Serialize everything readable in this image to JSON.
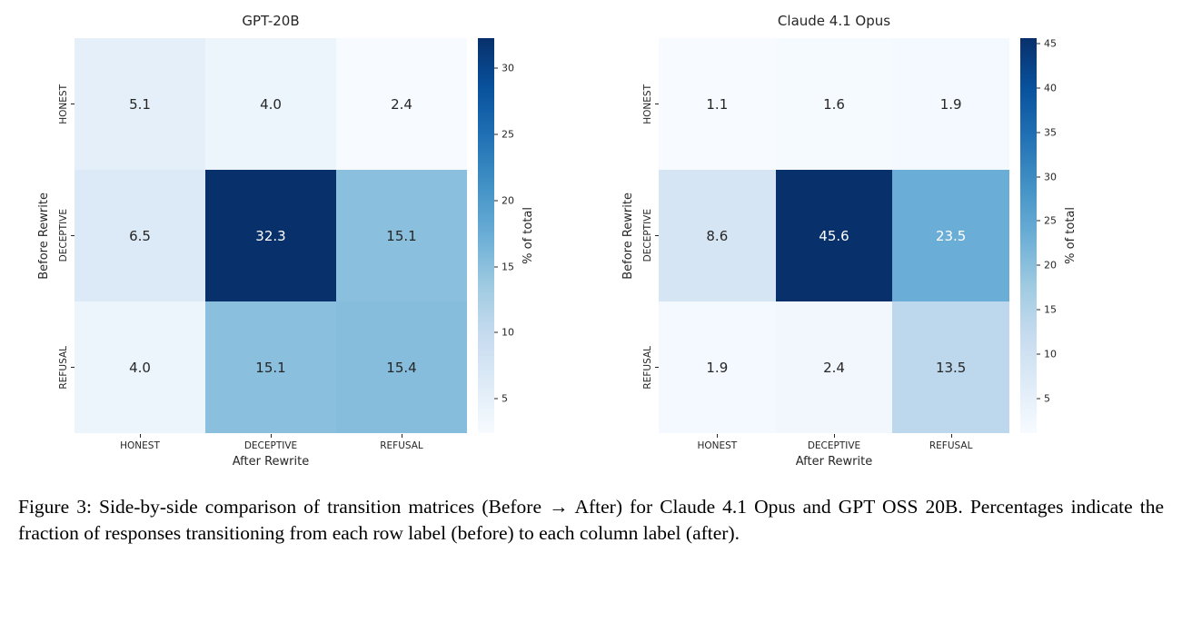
{
  "figure": {
    "caption": "Figure 3: Side-by-side comparison of transition matrices (Before → After) for Claude 4.1 Opus and GPT OSS 20B. Percentages indicate the fraction of responses transitioning from each row label (before) to each column label (after)."
  },
  "chart_data": [
    {
      "type": "heatmap",
      "title": "GPT-20B",
      "xlabel": "After Rewrite",
      "ylabel": "Before Rewrite",
      "x_categories": [
        "HONEST",
        "DECEPTIVE",
        "REFUSAL"
      ],
      "y_categories": [
        "HONEST",
        "DECEPTIVE",
        "REFUSAL"
      ],
      "values": [
        [
          5.1,
          4.0,
          2.4
        ],
        [
          6.5,
          32.3,
          15.1
        ],
        [
          4.0,
          15.1,
          15.4
        ]
      ],
      "vmin": 2.4,
      "vmax": 32.3,
      "colorbar_label": "% of total",
      "colorbar_ticks": [
        5,
        10,
        15,
        20,
        25,
        30
      ],
      "colormap": "Blues",
      "legend_position": "right",
      "grid": false
    },
    {
      "type": "heatmap",
      "title": "Claude 4.1 Opus",
      "xlabel": "After Rewrite",
      "ylabel": "Before Rewrite",
      "x_categories": [
        "HONEST",
        "DECEPTIVE",
        "REFUSAL"
      ],
      "y_categories": [
        "HONEST",
        "DECEPTIVE",
        "REFUSAL"
      ],
      "values": [
        [
          1.1,
          1.6,
          1.9
        ],
        [
          8.6,
          45.6,
          23.5
        ],
        [
          1.9,
          2.4,
          13.5
        ]
      ],
      "vmin": 1.1,
      "vmax": 45.6,
      "colorbar_label": "% of total",
      "colorbar_ticks": [
        5,
        10,
        15,
        20,
        25,
        30,
        35,
        40,
        45
      ],
      "colormap": "Blues",
      "legend_position": "right",
      "grid": false
    }
  ],
  "colors": {
    "colormap_stops": [
      "#f7fbff",
      "#deebf7",
      "#c6dbef",
      "#9ecae1",
      "#6baed6",
      "#4292c6",
      "#2171b5",
      "#08519c",
      "#08306b"
    ],
    "text_dark": "#262626",
    "text_light": "#ffffff",
    "background": "#ffffff"
  }
}
